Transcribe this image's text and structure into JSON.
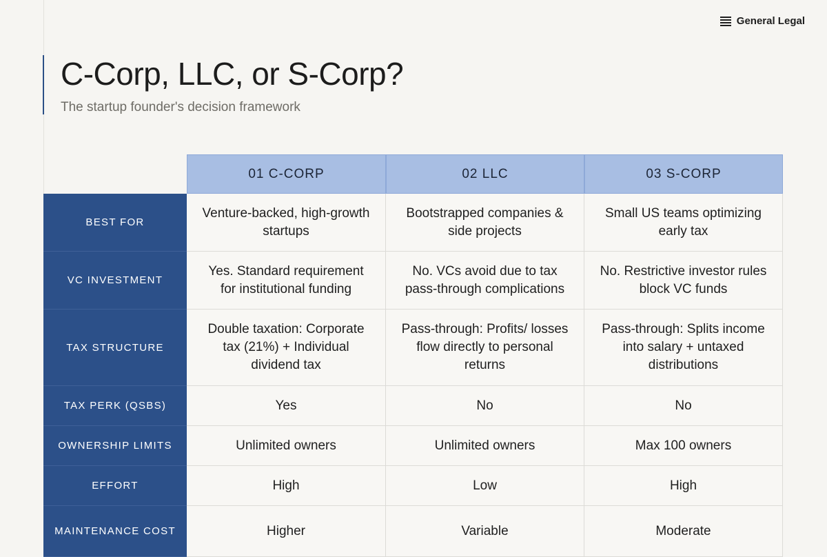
{
  "header": {
    "brand": "General Legal",
    "title": "C-Corp, LLC, or S-Corp?",
    "subtitle": "The startup founder's decision framework"
  },
  "table": {
    "columns": [
      "01 C-CORP",
      "02 LLC",
      "03 S-CORP"
    ],
    "rows": [
      {
        "label": "BEST FOR",
        "cells": [
          "Venture-backed, high-growth startups",
          "Bootstrapped companies & side projects",
          "Small US teams optimizing early tax"
        ]
      },
      {
        "label": "VC INVESTMENT",
        "cells": [
          "Yes. Standard requirement for institutional funding",
          "No. VCs avoid due to tax pass-through complications",
          "No. Restrictive investor rules block VC funds"
        ]
      },
      {
        "label": "TAX STRUCTURE",
        "cells": [
          "Double taxation: Corporate tax (21%) + Individual dividend tax",
          "Pass-through: Profits/ losses flow directly to personal returns",
          "Pass-through: Splits income into salary + untaxed distributions"
        ]
      },
      {
        "label": "TAX PERK (QSBS)",
        "cells": [
          "Yes",
          "No",
          "No"
        ]
      },
      {
        "label": "OWNERSHIP LIMITS",
        "cells": [
          "Unlimited owners",
          "Unlimited owners",
          "Max 100 owners"
        ]
      },
      {
        "label": "EFFORT",
        "cells": [
          "High",
          "Low",
          "High"
        ]
      },
      {
        "label": "MAINTENANCE COST",
        "cells": [
          "Higher",
          "Variable",
          "Moderate"
        ]
      }
    ]
  }
}
